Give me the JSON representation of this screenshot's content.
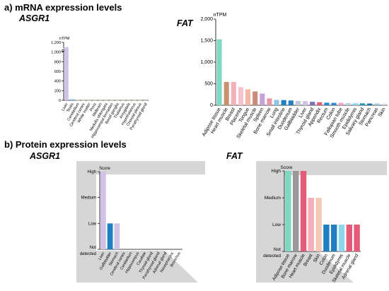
{
  "section_a": "a)   mRNA expression levels",
  "section_b": "b) Protein expression levels",
  "panels": {
    "a_left_title": "ASGR1",
    "a_right_title": "FAT",
    "b_left_title": "ASGR1",
    "b_right_title": "FAT"
  },
  "colors": {
    "panel_bg": "#d6d6d6",
    "axis": "#000000"
  },
  "chart_data": [
    {
      "type": "bar",
      "panel": "mRNA ASGR1",
      "ylabel": "nTPM",
      "ylim": [
        0,
        1200
      ],
      "yaxis_break": true,
      "yticks": [
        0,
        200,
        400,
        600,
        800,
        1000,
        1200
      ],
      "ytick_labels": [
        "0",
        "200",
        "400",
        "600",
        "800",
        "1,000",
        "1,200"
      ],
      "categories": [
        "Liver",
        "Testis",
        "Cerebellum",
        "Cerebral cortex",
        "White matter",
        "Pons",
        "Midbrain",
        "Medulla oblongata",
        "Hippocampal formation",
        "Basal ganglia",
        "Thalamus",
        "Amygdala",
        "Hypothalamus",
        "Choroid plexus",
        "Parathyroid gland"
      ],
      "values": [
        1100,
        25,
        4,
        3,
        3,
        3,
        3,
        3,
        3,
        3,
        3,
        3,
        3,
        3,
        2
      ],
      "colors": [
        "#cfc2e6",
        "#8fd0ee",
        "#f2d9a0",
        "#f2d9a0",
        "#f2d9a0",
        "#f2d9a0",
        "#f2d9a0",
        "#f2d9a0",
        "#f2d9a0",
        "#f2d9a0",
        "#f2d9a0",
        "#f2d9a0",
        "#f2d9a0",
        "#f2d9a0",
        "#f5b3a3"
      ]
    },
    {
      "type": "bar",
      "panel": "mRNA FAT",
      "ylabel": "nTPM",
      "ylim": [
        0,
        2000
      ],
      "yticks": [
        0,
        500,
        1000,
        1500,
        2000
      ],
      "ytick_labels": [
        "0",
        "500",
        "1,000",
        "1,500",
        "2,000"
      ],
      "categories": [
        "Adipose tissue",
        "Heart muscle",
        "Breast",
        "Placenta",
        "Tongue",
        "Skeletal muscle",
        "Spleen",
        "Bone marrow",
        "Lung",
        "Small intestine",
        "Duodenum",
        "Gallbladder",
        "Liver",
        "Thyroid gland",
        "Appendix",
        "Rectum",
        "Colon",
        "Fallopian tube",
        "Smooth muscle",
        "Epididymis",
        "Salivary gland",
        "Stomach",
        "Pancreas",
        "Skin"
      ],
      "values": [
        1530,
        540,
        540,
        420,
        370,
        320,
        270,
        160,
        125,
        120,
        110,
        100,
        95,
        80,
        70,
        60,
        55,
        55,
        50,
        45,
        45,
        40,
        40,
        35
      ],
      "colors": [
        "#7fd8c2",
        "#c9926e",
        "#f2b0b8",
        "#f6c2cc",
        "#f4b9a6",
        "#cc8b78",
        "#c7a2d4",
        "#e79aa6",
        "#93c4e8",
        "#1f7fc0",
        "#1f7fc0",
        "#bcc8d6",
        "#cfc2e6",
        "#7f72b0",
        "#e35b78",
        "#2a8ad0",
        "#2a8ad0",
        "#f3a3c4",
        "#b9cfe3",
        "#8ed6ec",
        "#1a9fc0",
        "#1f6fb0",
        "#9fc6e0",
        "#c9d7e7"
      ]
    },
    {
      "type": "bar",
      "panel": "Protein ASGR1",
      "ylabel": "Score",
      "yticks": [
        "Not detected",
        "Low",
        "Medium",
        "High"
      ],
      "ylim": [
        0,
        3
      ],
      "categories": [
        "Liver",
        "Gallbladder",
        "Stomach",
        "Cerebral cortex",
        "Cerebellum",
        "Hippocampus",
        "Caudate",
        "Thyroid gland",
        "Parathyroid gland",
        "Adrenal gland",
        "Nasopharynx",
        "Bronchus"
      ],
      "values": [
        3,
        1,
        1,
        0,
        0,
        0,
        0,
        0,
        0,
        0,
        0,
        0
      ],
      "colors": [
        "#cfc2e6",
        "#1f7fc0",
        "#cfc2e6",
        "#cccccc",
        "#cccccc",
        "#cccccc",
        "#cccccc",
        "#cccccc",
        "#cccccc",
        "#cccccc",
        "#cccccc",
        "#cccccc"
      ]
    },
    {
      "type": "bar",
      "panel": "Protein FAT",
      "ylabel": "Score",
      "yticks": [
        "Not detected",
        "Low",
        "Medium",
        "High"
      ],
      "ylim": [
        0,
        3
      ],
      "categories": [
        "Adipose tissue",
        "Bone marrow",
        "Heart muscle",
        "Breast",
        "Skin",
        "Colon",
        "Duodenum",
        "Epididymis",
        "Skeletal muscle",
        "Adrenal gland"
      ],
      "values": [
        3,
        3,
        3,
        2,
        2,
        1,
        1,
        1,
        1,
        1
      ],
      "colors": [
        "#7fd8c2",
        "#999999",
        "#e35b78",
        "#f2b0b8",
        "#f4c9b8",
        "#1f7fc0",
        "#1f7fc0",
        "#8ed6ec",
        "#e35b78",
        "#e35b78"
      ]
    }
  ]
}
